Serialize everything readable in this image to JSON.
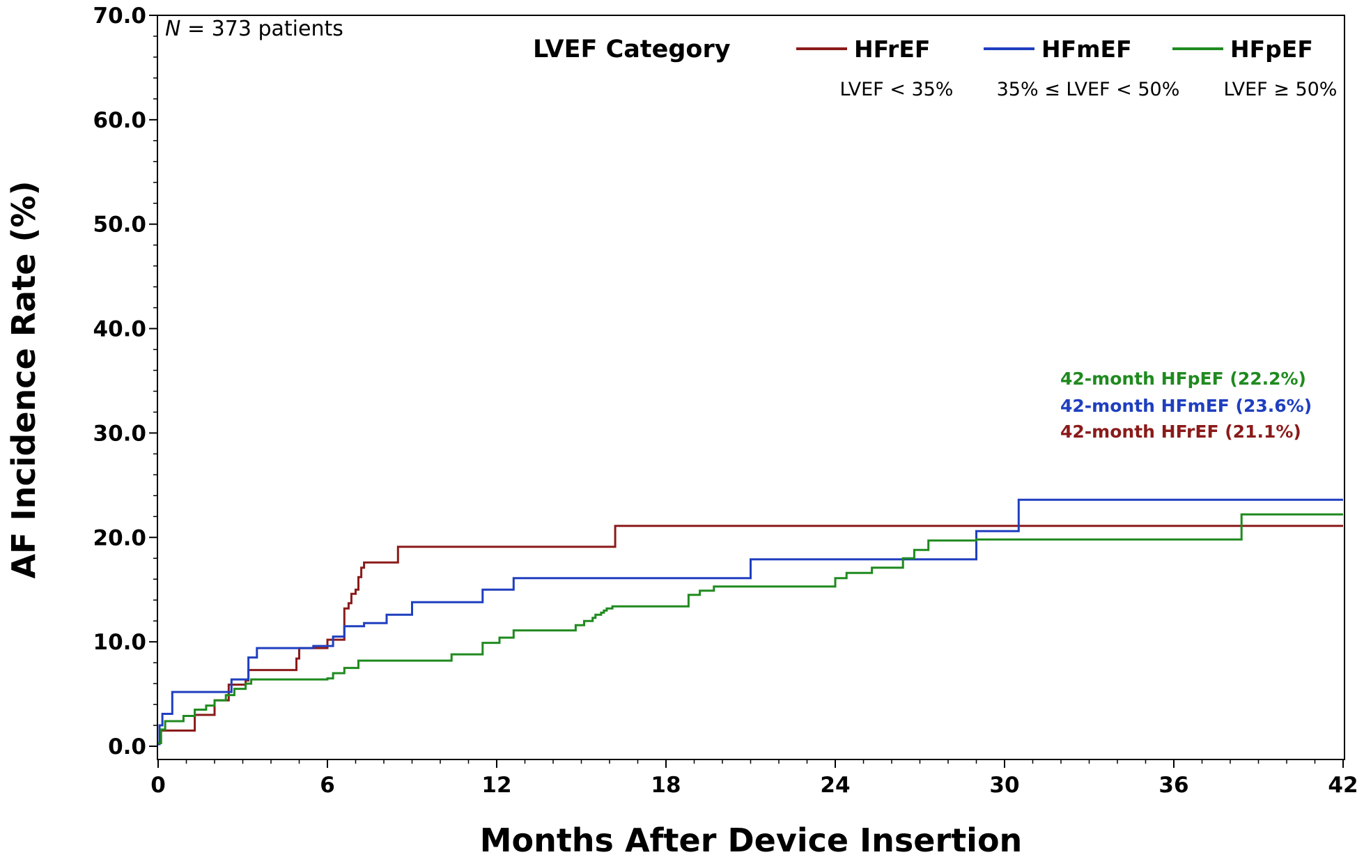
{
  "chart_data": {
    "type": "line",
    "subtype": "step",
    "xlabel": "Months After Device Insertion",
    "ylabel": "AF Incidence Rate (%)",
    "xlim": [
      0,
      42
    ],
    "ylim": [
      0,
      70
    ],
    "xticks": [
      "0",
      "6",
      "12",
      "18",
      "24",
      "30",
      "36",
      "42"
    ],
    "xtick_values": [
      0,
      6,
      12,
      18,
      24,
      30,
      36,
      42
    ],
    "yticks": [
      "0.0",
      "10.0",
      "20.0",
      "30.0",
      "40.0",
      "50.0",
      "60.0",
      "70.0"
    ],
    "ytick_values": [
      0,
      10,
      20,
      30,
      40,
      50,
      60,
      70
    ],
    "grid": false,
    "n_label": {
      "prefix": "N",
      "rest": " = 373 patients"
    },
    "legend": {
      "title": "LVEF Category",
      "placement": "top-right",
      "entries": [
        {
          "name": "HFrEF",
          "desc": "LVEF < 35%",
          "color": "#8b1a1a"
        },
        {
          "name": "HFmEF",
          "desc": "35% ≤ LVEF < 50%",
          "color": "#1f3fbf"
        },
        {
          "name": "HFpEF",
          "desc": "LVEF ≥ 50%",
          "color": "#1f8a1f"
        }
      ]
    },
    "annotations": [
      {
        "text": "42-month HFpEF (22.2%)",
        "color": "#1f8a1f"
      },
      {
        "text": "42-month HFmEF (23.6%)",
        "color": "#1f3fbf"
      },
      {
        "text": "42-month HFrEF (21.1%)",
        "color": "#8b1a1a"
      }
    ],
    "series": [
      {
        "name": "HFrEF",
        "color": "#8b1a1a",
        "x": [
          0,
          0.1,
          1.3,
          2.0,
          2.5,
          3.1,
          3.2,
          4.9,
          5.0,
          6.0,
          6.6,
          6.75,
          6.85,
          7.0,
          7.1,
          7.2,
          7.3,
          8.5,
          16.2,
          42
        ],
        "y": [
          0.3,
          1.5,
          3.0,
          4.4,
          5.9,
          6.3,
          7.3,
          8.4,
          9.4,
          10.2,
          13.2,
          13.7,
          14.6,
          15.0,
          16.2,
          17.1,
          17.6,
          19.1,
          21.1,
          21.1
        ]
      },
      {
        "name": "HFmEF",
        "color": "#1f3fbf",
        "x": [
          0,
          0.05,
          0.15,
          0.5,
          2.6,
          3.2,
          3.5,
          5.5,
          6.2,
          6.6,
          7.3,
          8.1,
          9.0,
          11.5,
          12.6,
          21.0,
          29.0,
          30.5,
          42
        ],
        "y": [
          0.2,
          2.0,
          3.1,
          5.2,
          6.4,
          8.5,
          9.4,
          9.6,
          10.5,
          11.5,
          11.8,
          12.6,
          13.8,
          15.0,
          16.1,
          17.9,
          20.6,
          23.6,
          23.6
        ]
      },
      {
        "name": "HFpEF",
        "color": "#1f8a1f",
        "x": [
          0,
          0.1,
          0.25,
          0.9,
          1.3,
          1.7,
          2.0,
          2.4,
          2.7,
          3.1,
          3.3,
          6.0,
          6.2,
          6.6,
          7.1,
          10.4,
          11.5,
          12.1,
          12.6,
          14.8,
          15.1,
          15.4,
          15.5,
          15.7,
          15.8,
          15.9,
          16.1,
          18.8,
          19.2,
          19.7,
          24.0,
          24.4,
          25.3,
          26.4,
          26.8,
          27.3,
          29.0,
          38.4,
          42
        ],
        "y": [
          0.3,
          1.6,
          2.4,
          2.9,
          3.5,
          3.9,
          4.4,
          4.9,
          5.5,
          6.0,
          6.4,
          6.5,
          7.0,
          7.5,
          8.2,
          8.8,
          9.9,
          10.4,
          11.1,
          11.6,
          12.0,
          12.3,
          12.6,
          12.8,
          13.0,
          13.2,
          13.4,
          14.5,
          14.9,
          15.3,
          16.1,
          16.6,
          17.1,
          18.0,
          18.8,
          19.7,
          19.8,
          22.2,
          22.2
        ]
      }
    ]
  }
}
